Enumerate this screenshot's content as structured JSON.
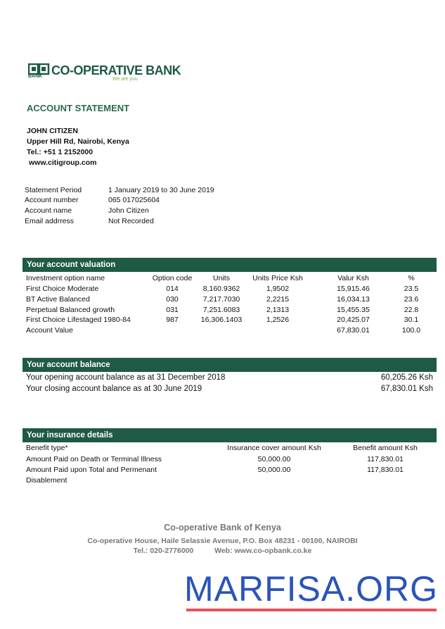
{
  "brand": {
    "name": "CO-OPERATIVE BANK",
    "logo_small": "BANK",
    "tagline": "We are you",
    "color": "#1f5a44"
  },
  "title": "ACCOUNT STATEMENT",
  "customer": {
    "name": "JOHN CITIZEN",
    "address": "Upper Hill Rd, Nairobi, Kenya",
    "tel": "Tel.: +51 1 2152000",
    "web": "www.citigroup.com"
  },
  "details": [
    {
      "label": "Statement Period",
      "value": "1 January 2019 to 30 June 2019"
    },
    {
      "label": "Account number",
      "value": "065 017025604"
    },
    {
      "label": "Account name",
      "value": "John Citizen"
    },
    {
      "label": "Email addrress",
      "value": "Not Recorded"
    }
  ],
  "valuation": {
    "title": "Your account valuation",
    "headers": [
      "Investment option name",
      "Option code",
      "Units",
      "Units Price  Ksh",
      "Valur Ksh",
      "%"
    ],
    "rows": [
      [
        "First Choice Moderate",
        "014",
        "8,160.9362",
        "1,9502",
        "15,915.46",
        "23.5"
      ],
      [
        "BT Active Balanced",
        "030",
        "7,217.7030",
        "2,2215",
        "16,034.13",
        "23.6"
      ],
      [
        "Perpetual Balanced growth",
        "031",
        "7,251.6083",
        "2,1313",
        "15,455.35",
        "22.8"
      ],
      [
        "First Choice Lifestaged 1980-84",
        "987",
        "16,306.1403",
        "1,2526",
        "20,425.07",
        "30.1"
      ],
      [
        "Account Value",
        "",
        "",
        "",
        "67,830.01",
        "100.0"
      ]
    ]
  },
  "balance": {
    "title": "Your account balance",
    "rows": [
      {
        "label": "Your opening account balance as at 31 December 2018",
        "value": "60,205.26 Ksh"
      },
      {
        "label": "Your closing account balance as at 30 June 2019",
        "value": "67,830.01 Ksh"
      }
    ]
  },
  "insurance": {
    "title": "Your insurance details",
    "headers": [
      "Benefit type*",
      "Insurance cover amount  Ksh",
      "Benefit amount  Ksh"
    ],
    "rows": [
      [
        "Amount Paid on Death or Terminal Illness",
        "50,000.00",
        "117,830.01"
      ],
      [
        "Amount Paid upon Total and Permenant",
        "50,000.00",
        "117,830.01"
      ]
    ],
    "row2_cont": "Disablement"
  },
  "footer": {
    "name": "Co-operative Bank of Kenya",
    "address": "Co-operative House, Haile Selassie Avenue, P.O. Box 48231 - 00100, NAIROBI",
    "tel": "Tel.:  020-2776000",
    "web": "Web: www.co-opbank.co.ke"
  },
  "watermark": {
    "text": "MARFISA.ORG",
    "color": "#2a55b8",
    "underline_color": "#e8515b"
  }
}
